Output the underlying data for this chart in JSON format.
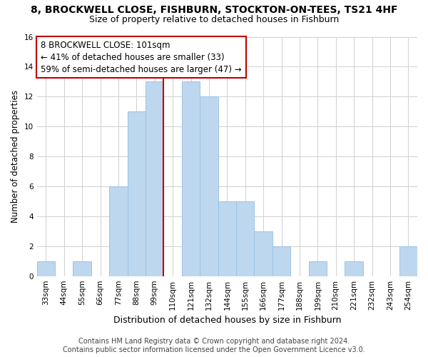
{
  "title": "8, BROCKWELL CLOSE, FISHBURN, STOCKTON-ON-TEES, TS21 4HF",
  "subtitle": "Size of property relative to detached houses in Fishburn",
  "xlabel": "Distribution of detached houses by size in Fishburn",
  "ylabel": "Number of detached properties",
  "bar_values": [
    1,
    0,
    1,
    0,
    6,
    11,
    13,
    0,
    13,
    12,
    5,
    5,
    3,
    2,
    0,
    1,
    0,
    1,
    0,
    0,
    2
  ],
  "bin_labels": [
    "33sqm",
    "44sqm",
    "55sqm",
    "66sqm",
    "77sqm",
    "88sqm",
    "99sqm",
    "110sqm",
    "121sqm",
    "132sqm",
    "144sqm",
    "155sqm",
    "166sqm",
    "177sqm",
    "188sqm",
    "199sqm",
    "210sqm",
    "221sqm",
    "232sqm",
    "243sqm",
    "254sqm"
  ],
  "bar_color": "#BDD7EE",
  "bar_edge_color": "#9DC3E6",
  "highlight_bar_index": 6,
  "highlight_color": "#C00000",
  "vline_color": "#C00000",
  "annotation_title": "8 BROCKWELL CLOSE: 101sqm",
  "annotation_line1": "← 41% of detached houses are smaller (33)",
  "annotation_line2": "59% of semi-detached houses are larger (47) →",
  "annotation_box_color": "#FFFFFF",
  "annotation_box_edge_color": "#C00000",
  "ylim": [
    0,
    16
  ],
  "yticks": [
    0,
    2,
    4,
    6,
    8,
    10,
    12,
    14,
    16
  ],
  "footnote1": "Contains HM Land Registry data © Crown copyright and database right 2024.",
  "footnote2": "Contains public sector information licensed under the Open Government Licence v3.0.",
  "background_color": "#FFFFFF",
  "grid_color": "#D0D0D0",
  "title_fontsize": 10,
  "subtitle_fontsize": 9,
  "xlabel_fontsize": 9,
  "ylabel_fontsize": 8.5,
  "tick_fontsize": 7.5,
  "annotation_fontsize": 8.5,
  "footnote_fontsize": 7
}
